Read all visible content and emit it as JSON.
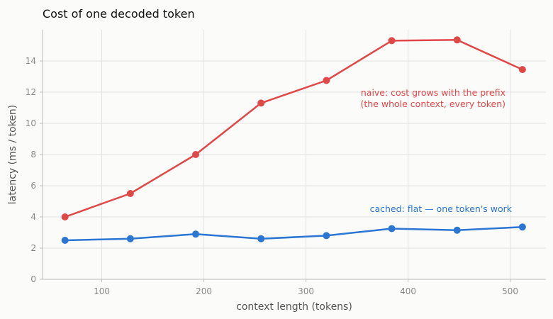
{
  "chart_data": {
    "type": "line",
    "title": "Cost of one decoded token",
    "xlabel": "context length (tokens)",
    "ylabel": "latency (ms / token)",
    "xlim": [
      42,
      535
    ],
    "ylim": [
      0,
      16
    ],
    "xticks": [
      100,
      200,
      300,
      400,
      500
    ],
    "yticks": [
      0,
      2,
      4,
      6,
      8,
      10,
      12,
      14
    ],
    "grid": true,
    "series": [
      {
        "key": "naive",
        "x": [
          64,
          128,
          192,
          256,
          320,
          384,
          448,
          512
        ],
        "y": [
          4.0,
          5.5,
          8.0,
          11.3,
          12.75,
          15.3,
          15.35,
          13.45
        ],
        "color": "#e04848",
        "annotation_lines": [
          "naive: cost grows with the prefix",
          "(the whole context, every token)"
        ]
      },
      {
        "key": "cached",
        "x": [
          64,
          128,
          192,
          256,
          320,
          384,
          448,
          512
        ],
        "y": [
          2.5,
          2.6,
          2.9,
          2.6,
          2.8,
          3.25,
          3.15,
          3.35
        ],
        "color": "#2a76d2",
        "annotation_lines": [
          "cached: flat — one token's work"
        ]
      }
    ]
  }
}
